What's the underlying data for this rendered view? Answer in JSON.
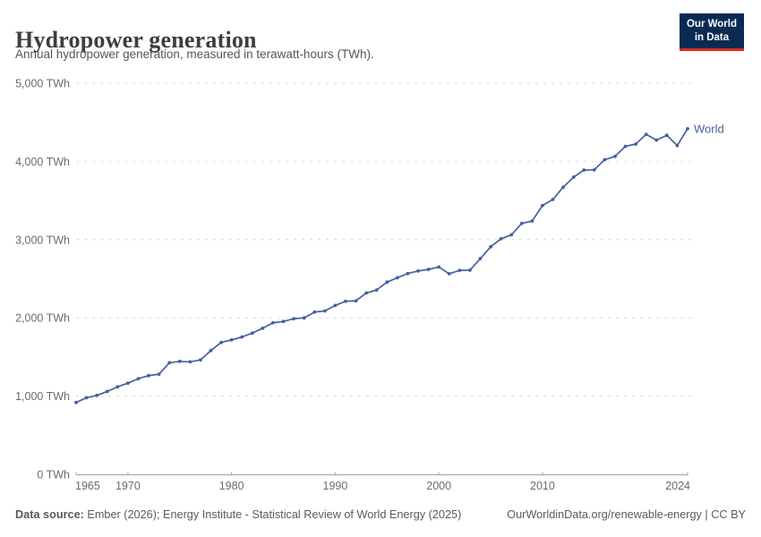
{
  "header": {
    "title": "Hydropower generation",
    "subtitle": "Annual hydropower generation, measured in terawatt-hours (TWh).",
    "logo": {
      "line1": "Our World",
      "line2": "in Data",
      "bg_color": "#0a2a52",
      "bar_color": "#dc2a22"
    }
  },
  "chart_data": {
    "type": "line",
    "title": "Hydropower generation",
    "unit": "TWh",
    "xlabel": "",
    "ylabel": "",
    "xlim": [
      1965,
      2024
    ],
    "ylim": [
      0,
      5000
    ],
    "grid": "horizontal-dashed",
    "legend_position": "end-of-line-label",
    "x_ticks": [
      {
        "year": 1965,
        "label": "1965"
      },
      {
        "year": 1970,
        "label": "1970"
      },
      {
        "year": 1980,
        "label": "1980"
      },
      {
        "year": 1990,
        "label": "1990"
      },
      {
        "year": 2000,
        "label": "2000"
      },
      {
        "year": 2010,
        "label": "2010"
      },
      {
        "year": 2024,
        "label": "2024"
      }
    ],
    "y_ticks": [
      {
        "value": 0,
        "label": "0 TWh"
      },
      {
        "value": 1000,
        "label": "1,000 TWh"
      },
      {
        "value": 2000,
        "label": "2,000 TWh"
      },
      {
        "value": 3000,
        "label": "3,000 TWh"
      },
      {
        "value": 4000,
        "label": "4,000 TWh"
      },
      {
        "value": 5000,
        "label": "5,000 TWh"
      }
    ],
    "series": [
      {
        "name": "World",
        "color": "#44619d",
        "years": [
          1965,
          1966,
          1967,
          1968,
          1969,
          1970,
          1971,
          1972,
          1973,
          1974,
          1975,
          1976,
          1977,
          1978,
          1979,
          1980,
          1981,
          1982,
          1983,
          1984,
          1985,
          1986,
          1987,
          1988,
          1989,
          1990,
          1991,
          1992,
          1993,
          1994,
          1995,
          1996,
          1997,
          1998,
          1999,
          2000,
          2001,
          2002,
          2003,
          2004,
          2005,
          2006,
          2007,
          2008,
          2009,
          2010,
          2011,
          2012,
          2013,
          2014,
          2015,
          2016,
          2017,
          2018,
          2019,
          2020,
          2021,
          2022,
          2023,
          2024
        ],
        "values": [
          919,
          979,
          1009,
          1059,
          1119,
          1166,
          1223,
          1262,
          1280,
          1427,
          1444,
          1438,
          1463,
          1582,
          1687,
          1718,
          1756,
          1806,
          1868,
          1938,
          1954,
          1990,
          2000,
          2074,
          2089,
          2159,
          2213,
          2219,
          2318,
          2357,
          2458,
          2514,
          2567,
          2599,
          2620,
          2651,
          2564,
          2607,
          2610,
          2759,
          2910,
          3012,
          3062,
          3208,
          3238,
          3437,
          3514,
          3672,
          3800,
          3890,
          3892,
          4023,
          4065,
          4193,
          4222,
          4347,
          4273,
          4334,
          4204,
          4418
        ]
      }
    ]
  },
  "footer": {
    "source_label": "Data source:",
    "source_text": " Ember (2026); Energy Institute - Statistical Review of World Energy (2025)",
    "link_text": "OurWorldinData.org/renewable-energy | CC BY"
  },
  "colors": {
    "grid": "#dcdcdc",
    "axis": "#a1a1a1",
    "tick_label": "#6b6b6b",
    "title": "#3d3d3d",
    "subtitle": "#565656",
    "footer": "#5a5a5a"
  }
}
